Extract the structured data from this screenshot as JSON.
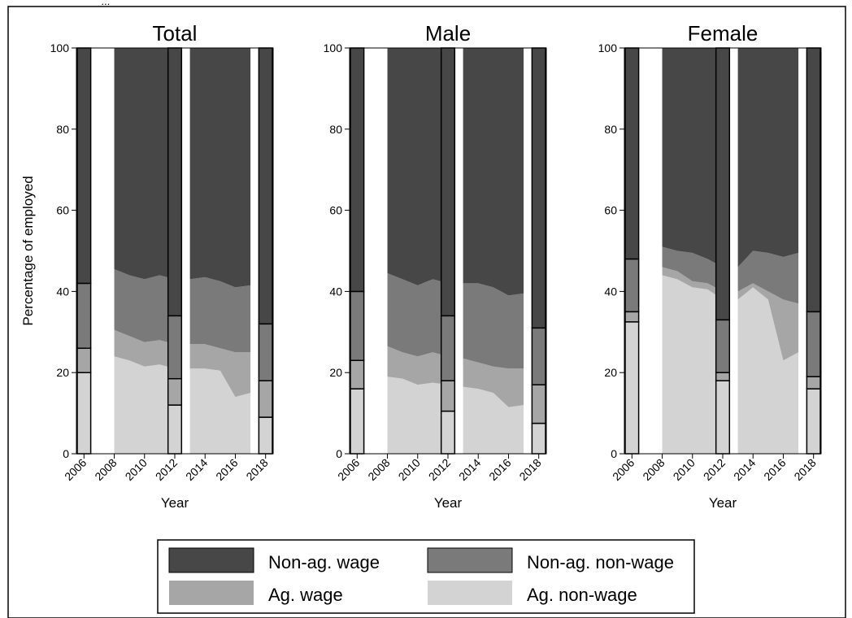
{
  "top_fragment": "...",
  "chart_data": [
    {
      "type": "area",
      "title": "Total",
      "xlabel": "Year",
      "ylabel": "Percentage of employed",
      "ylim": [
        0,
        100
      ],
      "x_ticks": [
        "2006",
        "2008",
        "2010",
        "2012",
        "2014",
        "2016",
        "2018"
      ],
      "y_ticks": [
        "0",
        "20",
        "40",
        "60",
        "80",
        "100"
      ],
      "bars": [
        {
          "year": 2006,
          "cum": [
            20,
            26,
            42,
            100
          ]
        },
        {
          "year": 2012,
          "cum": [
            12,
            18.5,
            34,
            100
          ]
        },
        {
          "year": 2018,
          "cum": [
            9,
            18,
            32,
            100
          ]
        }
      ],
      "areas": [
        {
          "years": [
            2008,
            2009,
            2010,
            2011,
            2012
          ],
          "cum": [
            [
              24,
              30.5,
              45.5,
              100
            ],
            [
              23,
              29,
              44,
              100
            ],
            [
              21.5,
              27.5,
              43,
              100
            ],
            [
              22,
              28,
              44,
              100
            ],
            [
              21,
              27,
              43,
              100
            ]
          ]
        },
        {
          "years": [
            2013,
            2014,
            2015,
            2016,
            2017
          ],
          "cum": [
            [
              21,
              27,
              43,
              100
            ],
            [
              21,
              27,
              43.5,
              100
            ],
            [
              20.5,
              26,
              42.5,
              100
            ],
            [
              14,
              25,
              41,
              100
            ],
            [
              15,
              25,
              41.5,
              100
            ]
          ]
        }
      ]
    },
    {
      "type": "area",
      "title": "Male",
      "xlabel": "Year",
      "ylabel": "",
      "ylim": [
        0,
        100
      ],
      "x_ticks": [
        "2006",
        "2008",
        "2010",
        "2012",
        "2014",
        "2016",
        "2018"
      ],
      "y_ticks": [
        "0",
        "20",
        "40",
        "60",
        "80",
        "100"
      ],
      "bars": [
        {
          "year": 2006,
          "cum": [
            16,
            23,
            40,
            100
          ]
        },
        {
          "year": 2012,
          "cum": [
            10.5,
            18,
            34,
            100
          ]
        },
        {
          "year": 2018,
          "cum": [
            7.5,
            17,
            31,
            100
          ]
        }
      ],
      "areas": [
        {
          "years": [
            2008,
            2009,
            2010,
            2011,
            2012
          ],
          "cum": [
            [
              19,
              26.5,
              44.5,
              100
            ],
            [
              18.5,
              25,
              43,
              100
            ],
            [
              17,
              24,
              41.5,
              100
            ],
            [
              17.5,
              25,
              43,
              100
            ],
            [
              17,
              24,
              42,
              100
            ]
          ]
        },
        {
          "years": [
            2013,
            2014,
            2015,
            2016,
            2017
          ],
          "cum": [
            [
              16.5,
              23.5,
              42,
              100
            ],
            [
              16,
              22.5,
              42,
              100
            ],
            [
              15,
              21.5,
              41,
              100
            ],
            [
              11.5,
              21,
              39,
              100
            ],
            [
              12,
              21,
              39.5,
              100
            ]
          ]
        }
      ]
    },
    {
      "type": "area",
      "title": "Female",
      "xlabel": "Year",
      "ylabel": "",
      "ylim": [
        0,
        100
      ],
      "x_ticks": [
        "2006",
        "2008",
        "2010",
        "2012",
        "2014",
        "2016",
        "2018"
      ],
      "y_ticks": [
        "0",
        "20",
        "40",
        "60",
        "80",
        "100"
      ],
      "bars": [
        {
          "year": 2006,
          "cum": [
            32.5,
            35,
            48,
            100
          ]
        },
        {
          "year": 2012,
          "cum": [
            18,
            20,
            33,
            100
          ]
        },
        {
          "year": 2018,
          "cum": [
            16,
            19,
            35,
            100
          ]
        }
      ],
      "areas": [
        {
          "years": [
            2008,
            2009,
            2010,
            2011,
            2012
          ],
          "cum": [
            [
              44,
              46,
              51,
              100
            ],
            [
              43,
              45,
              50,
              100
            ],
            [
              41,
              42.5,
              49.5,
              100
            ],
            [
              40.5,
              42,
              48,
              100
            ],
            [
              38,
              40,
              46,
              100
            ]
          ]
        },
        {
          "years": [
            2013,
            2014,
            2015,
            2016,
            2017
          ],
          "cum": [
            [
              38,
              40,
              46,
              100
            ],
            [
              41,
              42,
              50,
              100
            ],
            [
              38,
              40,
              49.5,
              100
            ],
            [
              23,
              38,
              48.5,
              100
            ],
            [
              25,
              37,
              49.5,
              100
            ]
          ]
        }
      ]
    }
  ],
  "legend": {
    "placement": "bottom",
    "items": [
      {
        "label": "Non-ag. wage",
        "color": "#474747"
      },
      {
        "label": "Non-ag. non-wage",
        "color": "#7a7a7a"
      },
      {
        "label": "Ag. wage",
        "color": "#a6a6a6"
      },
      {
        "label": "Ag. non-wage",
        "color": "#d3d3d3"
      }
    ]
  },
  "stack_order_bottom_to_top": [
    "Ag. non-wage",
    "Ag. wage",
    "Non-ag. non-wage",
    "Non-ag. wage"
  ],
  "colors": {
    "frame": "#000000",
    "background": "#ffffff"
  }
}
